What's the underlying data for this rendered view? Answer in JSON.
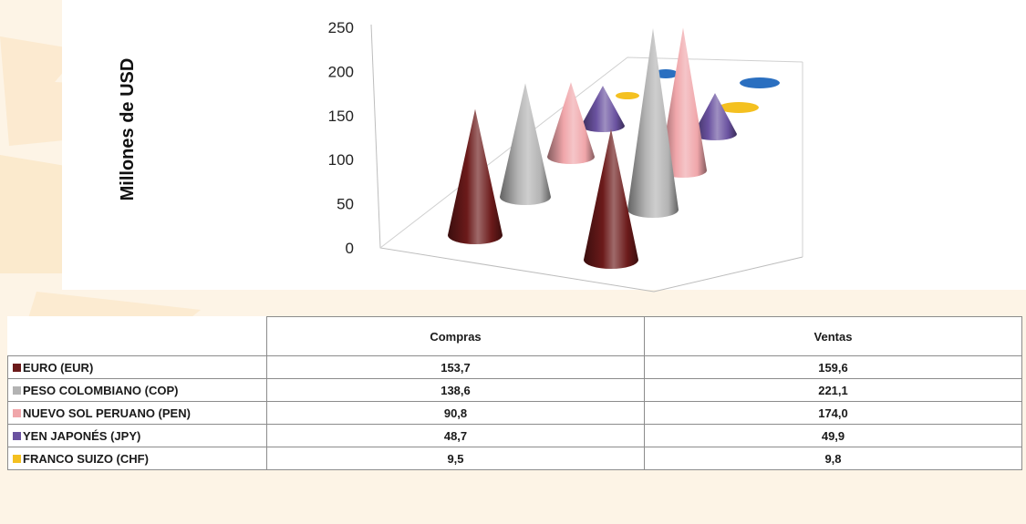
{
  "chart_data": {
    "type": "bar",
    "style": "3d-cone",
    "ylabel": "Millones de USD",
    "ylim": [
      0,
      250
    ],
    "yticks": [
      "0",
      "50",
      "100",
      "150",
      "200",
      "250"
    ],
    "categories": [
      "Compras",
      "Ventas"
    ],
    "series": [
      {
        "name": "EURO  (EUR)",
        "color": "#6b1a1a",
        "values": [
          153.7,
          159.6
        ],
        "labels": [
          "153,7",
          "159,6"
        ]
      },
      {
        "name": "PESO COLOMBIANO (COP)",
        "color": "#b3b3b3",
        "values": [
          138.6,
          221.1
        ],
        "labels": [
          "138,6",
          "221,1"
        ]
      },
      {
        "name": "NUEVO SOL PERUANO (PEN)",
        "color": "#f0a6aa",
        "values": [
          90.8,
          174.0
        ],
        "labels": [
          "90,8",
          "174,0"
        ]
      },
      {
        "name": "YEN JAPONÉS  (JPY)",
        "color": "#6a52a0",
        "values": [
          48.7,
          49.9
        ],
        "labels": [
          "48,7",
          "49,9"
        ]
      },
      {
        "name": "FRANCO SUIZO  (CHF)",
        "color": "#f4c020",
        "values": [
          9.5,
          9.8
        ],
        "labels": [
          "9,5",
          "9,8"
        ]
      }
    ],
    "hidden_series_color": "#2a6fc0",
    "grid": false,
    "legend": "table-below"
  }
}
